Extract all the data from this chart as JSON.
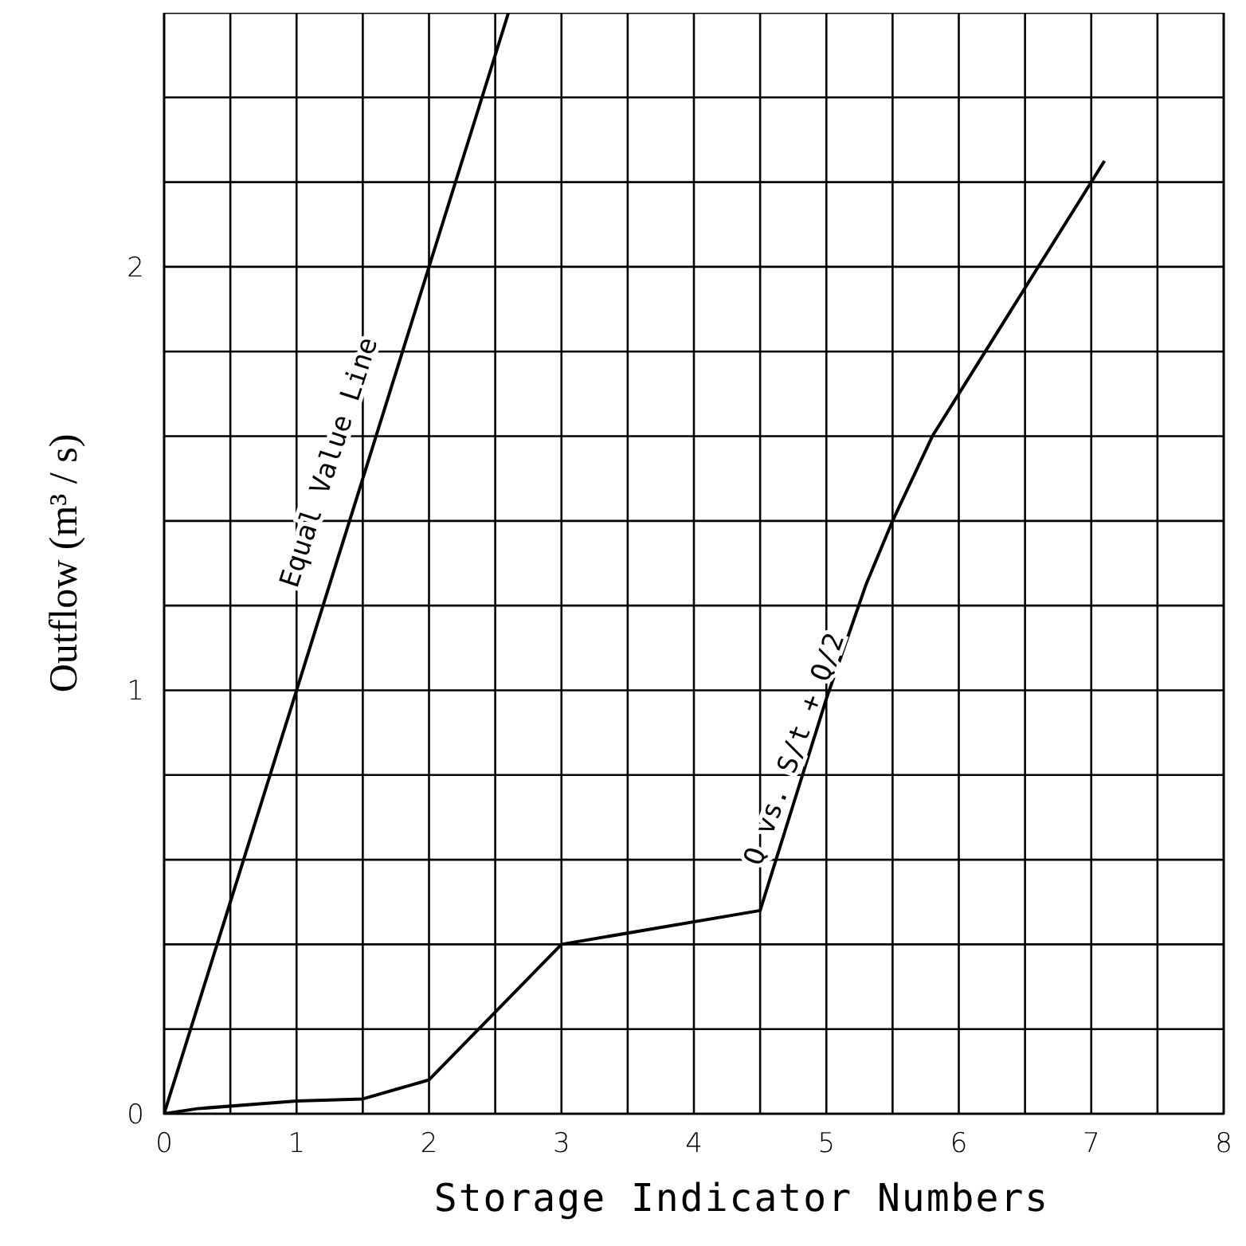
{
  "chart_data": {
    "type": "line",
    "xlabel": "Storage Indicator Numbers",
    "ylabel": "Outflow (m³ / s)",
    "xlim": [
      0,
      8
    ],
    "ylim": [
      0,
      2.6
    ],
    "xticks": [
      0,
      {
        "value": 0.5,
        "label": null
      },
      1,
      {
        "value": 1.5,
        "label": null
      },
      2,
      {
        "value": 2.5,
        "label": null
      },
      3,
      {
        "value": 3.5,
        "label": null
      },
      4,
      {
        "value": 4.5,
        "label": null
      },
      5,
      {
        "value": 5.5,
        "label": null
      },
      6,
      {
        "value": 6.5,
        "label": null
      },
      7,
      {
        "value": 7.5,
        "label": null
      },
      8
    ],
    "yticks": [
      0,
      {
        "value": 0.2,
        "label": null
      },
      {
        "value": 0.4,
        "label": null
      },
      {
        "value": 0.6,
        "label": null
      },
      {
        "value": 0.8,
        "label": null
      },
      1,
      {
        "value": 1.2,
        "label": null
      },
      {
        "value": 1.4,
        "label": null
      },
      {
        "value": 1.6,
        "label": null
      },
      {
        "value": 1.8,
        "label": null
      },
      2,
      {
        "value": 2.2,
        "label": null
      },
      {
        "value": 2.4,
        "label": null
      },
      {
        "value": 2.6,
        "label": null
      }
    ],
    "grid": true,
    "marker": "none",
    "line_style": "solid",
    "series": [
      {
        "color": "#000000",
        "x": [
          0,
          2.6
        ],
        "values": [
          0,
          2.6
        ]
      },
      {
        "color": "#000000",
        "x": [
          0,
          0.25,
          1,
          1.5,
          2,
          3,
          4.5,
          5,
          5.3,
          5.5,
          5.8,
          7.1
        ],
        "values": [
          0,
          0.012,
          0.03,
          0.035,
          0.08,
          0.4,
          0.48,
          0.98,
          1.25,
          1.4,
          1.6,
          2.25
        ]
      }
    ],
    "annotations": [
      "Equal Value Line",
      "Q vs. S/t + Q/2"
    ]
  }
}
